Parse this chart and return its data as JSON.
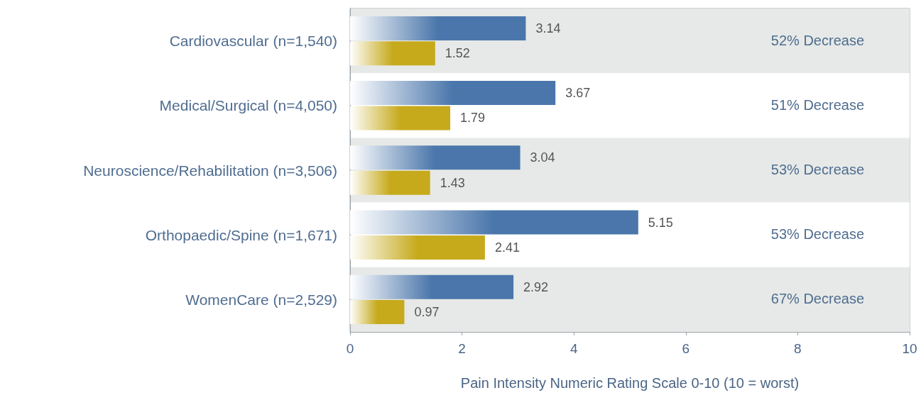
{
  "chart_data": {
    "type": "bar",
    "orientation": "horizontal",
    "xlabel": "Pain Intensity Numeric Rating Scale 0-10 (10 = worst)",
    "categories": [
      "Cardiovascular (n=1,540)",
      "Medical/Surgical (n=4,050)",
      "Neuroscience/Rehabilitation (n=3,506)",
      "Orthopaedic/Spine (n=1,671)",
      "WomenCare (n=2,529)"
    ],
    "series": [
      {
        "color": "#4a76ab",
        "values": [
          3.14,
          3.67,
          3.04,
          5.15,
          2.92
        ]
      },
      {
        "color": "#c6aa1c",
        "values": [
          1.52,
          1.79,
          1.43,
          2.41,
          0.97
        ]
      }
    ],
    "xlim": [
      0,
      10
    ],
    "xticks": [
      0,
      2,
      4,
      6,
      8,
      10
    ],
    "grid": false,
    "data_labels": true,
    "annotations": [
      "52% Decrease",
      "51% Decrease",
      "53% Decrease",
      "53% Decrease",
      "67% Decrease"
    ]
  }
}
